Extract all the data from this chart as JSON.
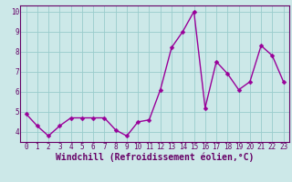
{
  "x": [
    0,
    1,
    2,
    3,
    4,
    5,
    6,
    7,
    8,
    9,
    10,
    11,
    12,
    13,
    14,
    15,
    16,
    17,
    18,
    19,
    20,
    21,
    22,
    23
  ],
  "y": [
    4.9,
    4.3,
    3.8,
    4.3,
    4.7,
    4.7,
    4.7,
    4.7,
    4.1,
    3.8,
    4.5,
    4.6,
    6.1,
    8.2,
    9.0,
    10.0,
    5.2,
    7.5,
    6.9,
    6.1,
    6.5,
    8.3,
    7.8,
    6.5
  ],
  "line_color": "#990099",
  "marker_color": "#990099",
  "bg_color": "#cce8e8",
  "grid_color": "#99cccc",
  "xlabel": "Windchill (Refroidissement éolien,°C)",
  "xlabel_color": "#660066",
  "tick_color": "#660066",
  "spine_color": "#660066",
  "xlim": [
    -0.5,
    23.5
  ],
  "ylim": [
    3.5,
    10.3
  ],
  "yticks": [
    4,
    5,
    6,
    7,
    8,
    9,
    10
  ],
  "xticks": [
    0,
    1,
    2,
    3,
    4,
    5,
    6,
    7,
    8,
    9,
    10,
    11,
    12,
    13,
    14,
    15,
    16,
    17,
    18,
    19,
    20,
    21,
    22,
    23
  ],
  "tick_fontsize": 5.5,
  "xlabel_fontsize": 7.0,
  "line_width": 1.0,
  "marker_size": 2.5
}
